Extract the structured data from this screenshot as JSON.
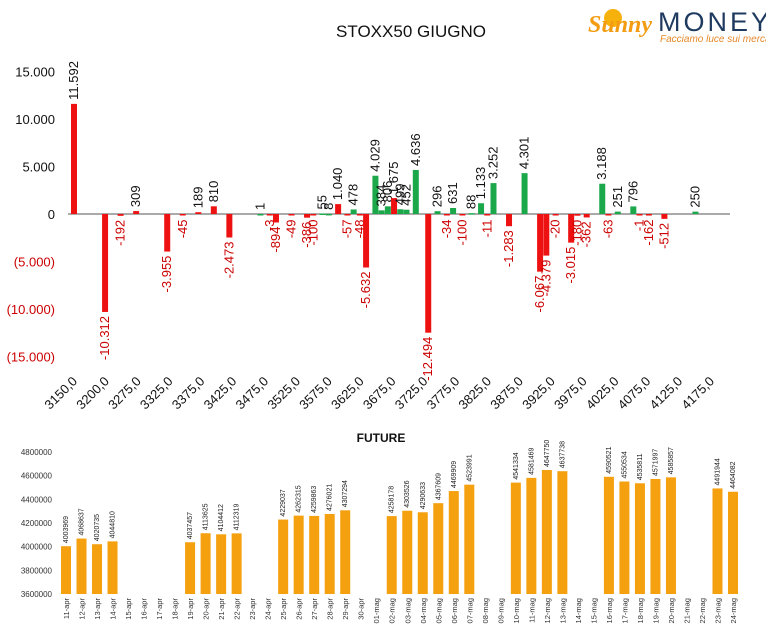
{
  "brand": {
    "name_part1": "Sunny",
    "name_part2": "MONEY",
    "tagline": "Facciamo luce sui mercati",
    "colors": {
      "accent": "#f39c12",
      "dark": "#1f3a5f"
    }
  },
  "colors": {
    "negative": "#ee1111",
    "positive": "#1aa84a",
    "future_bar": "#f5a00e",
    "neg_label": "#cc0000"
  },
  "chart_data": [
    {
      "type": "bar",
      "title": "STOXX50 GIUGNO",
      "xlabel": "",
      "ylabel": "",
      "ylim": [
        -15000,
        15000
      ],
      "yticks": [
        "15.000",
        "10.000",
        "5.000",
        "0",
        "(5.000)",
        "(10.000)",
        "(15.000)"
      ],
      "categories": [
        "3150,0",
        "3200,0",
        "3275,0",
        "3325,0",
        "3375,0",
        "3425,0",
        "3475,0",
        "3525,0",
        "3575,0",
        "3625,0",
        "3675,0",
        "3725,0",
        "3775,0",
        "3825,0",
        "3875,0",
        "3925,0",
        "3975,0",
        "4025,0",
        "4075,0",
        "4125,0",
        "4175,0"
      ],
      "series": [
        {
          "points": [
            {
              "k": 3150,
              "v": 11592,
              "l": "11.592"
            },
            {
              "k": 3200,
              "v": -10312,
              "l": "-10.312"
            },
            {
              "k": 3225,
              "v": -192,
              "l": "-192"
            },
            {
              "k": 3250,
              "v": 309,
              "l": "309"
            },
            {
              "k": 3300,
              "v": -3955,
              "l": "-3.955"
            },
            {
              "k": 3325,
              "v": -45,
              "l": "-45"
            },
            {
              "k": 3350,
              "v": 189,
              "l": "189"
            },
            {
              "k": 3375,
              "v": 810,
              "l": "810"
            },
            {
              "k": 3400,
              "v": -2473,
              "l": "-2.473"
            },
            {
              "k": 3450,
              "v": 1,
              "l": "1"
            },
            {
              "k": 3465,
              "v": -3,
              "l": "-3"
            },
            {
              "k": 3475,
              "v": -894,
              "l": "-894"
            },
            {
              "k": 3500,
              "v": -49,
              "l": "-49"
            },
            {
              "k": 3525,
              "v": -386,
              "l": "-386"
            },
            {
              "k": 3535,
              "v": -100,
              "l": "-100"
            },
            {
              "k": 3550,
              "v": 55,
              "l": "55"
            },
            {
              "k": 3560,
              "v": 8,
              "l": "8"
            },
            {
              "k": 3575,
              "v": 1040,
              "l": "1.040"
            },
            {
              "k": 3590,
              "v": -57,
              "l": "-57"
            },
            {
              "k": 3600,
              "v": 478,
              "l": "478"
            },
            {
              "k": 3610,
              "v": -48,
              "l": "-48"
            },
            {
              "k": 3620,
              "v": -5632,
              "l": "-5.632"
            },
            {
              "k": 3635,
              "v": 4029,
              "l": "4.029"
            },
            {
              "k": 3645,
              "v": 384,
              "l": "384"
            },
            {
              "k": 3655,
              "v": 806,
              "l": "806"
            },
            {
              "k": 3665,
              "v": 1675,
              "l": "1.675"
            },
            {
              "k": 3675,
              "v": 499,
              "l": "499"
            },
            {
              "k": 3685,
              "v": 452,
              "l": "452"
            },
            {
              "k": 3700,
              "v": 4636,
              "l": "4.636"
            },
            {
              "k": 3720,
              "v": -12494,
              "l": "-12.494"
            },
            {
              "k": 3735,
              "v": 296,
              "l": "296"
            },
            {
              "k": 3750,
              "v": -34,
              "l": "-34"
            },
            {
              "k": 3760,
              "v": 631,
              "l": "631"
            },
            {
              "k": 3775,
              "v": -100,
              "l": "-100"
            },
            {
              "k": 3790,
              "v": 88,
              "l": "88"
            },
            {
              "k": 3805,
              "v": 1133,
              "l": "1.133"
            },
            {
              "k": 3815,
              "v": -11,
              "l": "-11"
            },
            {
              "k": 3825,
              "v": 3252,
              "l": "3.252"
            },
            {
              "k": 3850,
              "v": -1283,
              "l": "-1.283"
            },
            {
              "k": 3875,
              "v": 4301,
              "l": "4.301"
            },
            {
              "k": 3900,
              "v": -6067,
              "l": "-6.067"
            },
            {
              "k": 3910,
              "v": -4379,
              "l": "-4.379"
            },
            {
              "k": 3925,
              "v": -20,
              "l": "-20"
            },
            {
              "k": 3950,
              "v": -3015,
              "l": "-3.015"
            },
            {
              "k": 3960,
              "v": -180,
              "l": "-180"
            },
            {
              "k": 3975,
              "v": -362,
              "l": "-362"
            },
            {
              "k": 4000,
              "v": 3188,
              "l": "3.188"
            },
            {
              "k": 4010,
              "v": -63,
              "l": "-63"
            },
            {
              "k": 4025,
              "v": 251,
              "l": "251"
            },
            {
              "k": 4050,
              "v": 796,
              "l": "796"
            },
            {
              "k": 4060,
              "v": -1,
              "l": "-1"
            },
            {
              "k": 4075,
              "v": -162,
              "l": "-162"
            },
            {
              "k": 4100,
              "v": -512,
              "l": "-512"
            },
            {
              "k": 4150,
              "v": 250,
              "l": "250"
            }
          ]
        }
      ]
    },
    {
      "type": "bar",
      "title": "FUTURE",
      "ylim": [
        3600000,
        4800000
      ],
      "yticks": [
        "4800000",
        "4600000",
        "4400000",
        "4200000",
        "4000000",
        "3800000",
        "3600000"
      ],
      "categories": [
        "11-apr",
        "12-apr",
        "13-apr",
        "14-apr",
        "15-apr",
        "16-apr",
        "17-apr",
        "18-apr",
        "19-apr",
        "20-apr",
        "21-apr",
        "22-apr",
        "23-apr",
        "24-apr",
        "25-apr",
        "26-apr",
        "27-apr",
        "28-apr",
        "29-apr",
        "30-apr",
        "01-mag",
        "02-mag",
        "03-mag",
        "04-mag",
        "05-mag",
        "06-mag",
        "07-mag",
        "08-mag",
        "09-mag",
        "10-mag",
        "11-mag",
        "12-mag",
        "13-mag",
        "14-mag",
        "15-mag",
        "16-mag",
        "17-mag",
        "18-mag",
        "19-mag",
        "20-mag",
        "21-mag",
        "22-mag",
        "23-mag",
        "24-mag"
      ],
      "values": [
        4003969,
        4068637,
        4020735,
        4044810,
        null,
        null,
        null,
        null,
        4037457,
        4113625,
        4104412,
        4112319,
        null,
        null,
        4229037,
        4262315,
        4259863,
        4276021,
        4307294,
        null,
        null,
        4258178,
        4303526,
        4290633,
        4367609,
        4469909,
        4523991,
        null,
        null,
        4541334,
        4581469,
        4647750,
        4637738,
        null,
        null,
        4590521,
        4550534,
        4535811,
        4571997,
        4585857,
        null,
        null,
        4491944,
        4464082
      ]
    }
  ]
}
